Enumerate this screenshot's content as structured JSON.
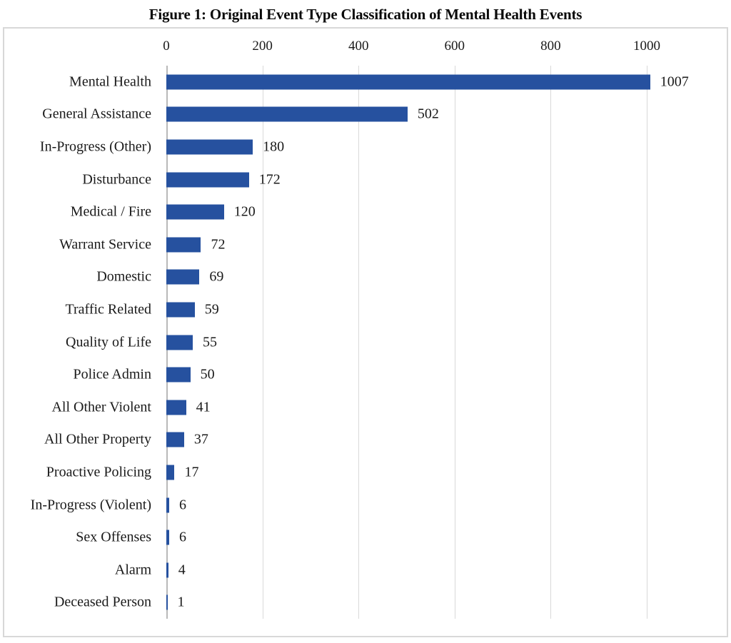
{
  "title": "Figure 1: Original Event Type Classification of Mental Health Events",
  "chart_data": {
    "type": "bar",
    "orientation": "horizontal",
    "title": "Figure 1: Original Event Type Classification of Mental Health Events",
    "categories": [
      "Mental Health",
      "General Assistance",
      "In-Progress (Other)",
      "Disturbance",
      "Medical / Fire",
      "Warrant Service",
      "Domestic",
      "Traffic Related",
      "Quality of Life",
      "Police Admin",
      "All Other Violent",
      "All Other Property",
      "Proactive Policing",
      "In-Progress (Violent)",
      "Sex Offenses",
      "Alarm",
      "Deceased Person"
    ],
    "values": [
      1007,
      502,
      180,
      172,
      120,
      72,
      69,
      59,
      55,
      50,
      41,
      37,
      17,
      6,
      6,
      4,
      1
    ],
    "data_labels": [
      1007,
      502,
      180,
      172,
      120,
      72,
      69,
      59,
      55,
      50,
      41,
      37,
      17,
      6,
      6,
      4,
      1
    ],
    "x_ticks": [
      0,
      200,
      400,
      600,
      800,
      1000
    ],
    "xlim": [
      0,
      1160
    ],
    "xlabel": "",
    "ylabel": "",
    "legend": "none",
    "grid": "vertical",
    "bar_color": "#26519f",
    "gridline_color": "#d9d9d9",
    "axis_line_color": "#b9b9b9",
    "border_color": "#d8d8d8"
  }
}
